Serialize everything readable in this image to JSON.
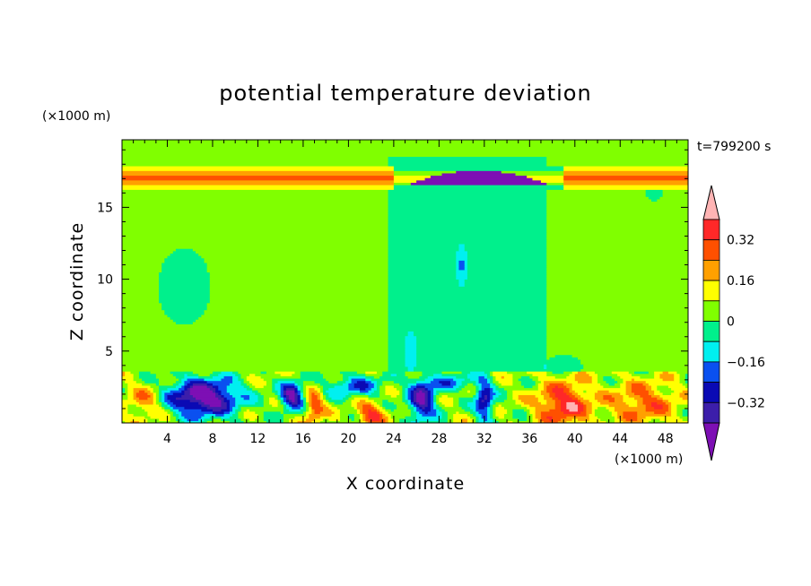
{
  "chart_data": {
    "type": "heatmap",
    "title": "potential temperature deviation",
    "xlabel": "X coordinate",
    "ylabel": "Z coordinate",
    "x_units": "(×1000 m)",
    "y_units": "(×1000 m)",
    "time_label": "t=799200 s",
    "xlim": [
      0,
      50
    ],
    "ylim": [
      0,
      19.7
    ],
    "x_ticks": [
      "4",
      "8",
      "12",
      "16",
      "20",
      "24",
      "28",
      "32",
      "36",
      "40",
      "44",
      "48"
    ],
    "y_ticks": [
      "5",
      "10",
      "15"
    ],
    "colorbar": {
      "labels": [
        "0.32",
        "0.16",
        "0",
        "−0.16",
        "−0.32"
      ],
      "label_values": [
        0.32,
        0.16,
        0,
        -0.16,
        -0.32
      ],
      "levels": [
        -0.4,
        -0.32,
        -0.24,
        -0.16,
        -0.08,
        0,
        0.08,
        0.16,
        0.24,
        0.32,
        0.4
      ],
      "colors": [
        "#7d0fb4",
        "#3c1eaa",
        "#0a0ab4",
        "#0a50f0",
        "#00f0f0",
        "#00f08c",
        "#80ff00",
        "#ffff00",
        "#ffa000",
        "#ff5000",
        "#ff2828",
        "#ffb4b4"
      ],
      "extend": "both"
    },
    "regions": [
      {
        "name": "background",
        "value": 0.04
      },
      {
        "name": "central-column",
        "x": [
          24,
          37
        ],
        "z": [
          4,
          18.5
        ],
        "value": -0.04
      },
      {
        "name": "upper-left-blob",
        "x": [
          2,
          9
        ],
        "z": [
          6.5,
          12.5
        ],
        "value": -0.04
      },
      {
        "name": "tropopause-warm-band",
        "x": [
          0,
          50
        ],
        "z": [
          16.2,
          17.8
        ],
        "value": 0.2
      },
      {
        "name": "tropopause-cold-lens",
        "x": [
          25,
          38
        ],
        "z": [
          16.5,
          17.5
        ],
        "value": -0.4
      },
      {
        "name": "boundary-layer-cold-left",
        "x": [
          3,
          12
        ],
        "z": [
          0.3,
          3.2
        ],
        "value": -0.4
      },
      {
        "name": "boundary-layer-warm-right",
        "x": [
          36,
          50
        ],
        "z": [
          0,
          3.5
        ],
        "value": 0.3
      }
    ]
  }
}
